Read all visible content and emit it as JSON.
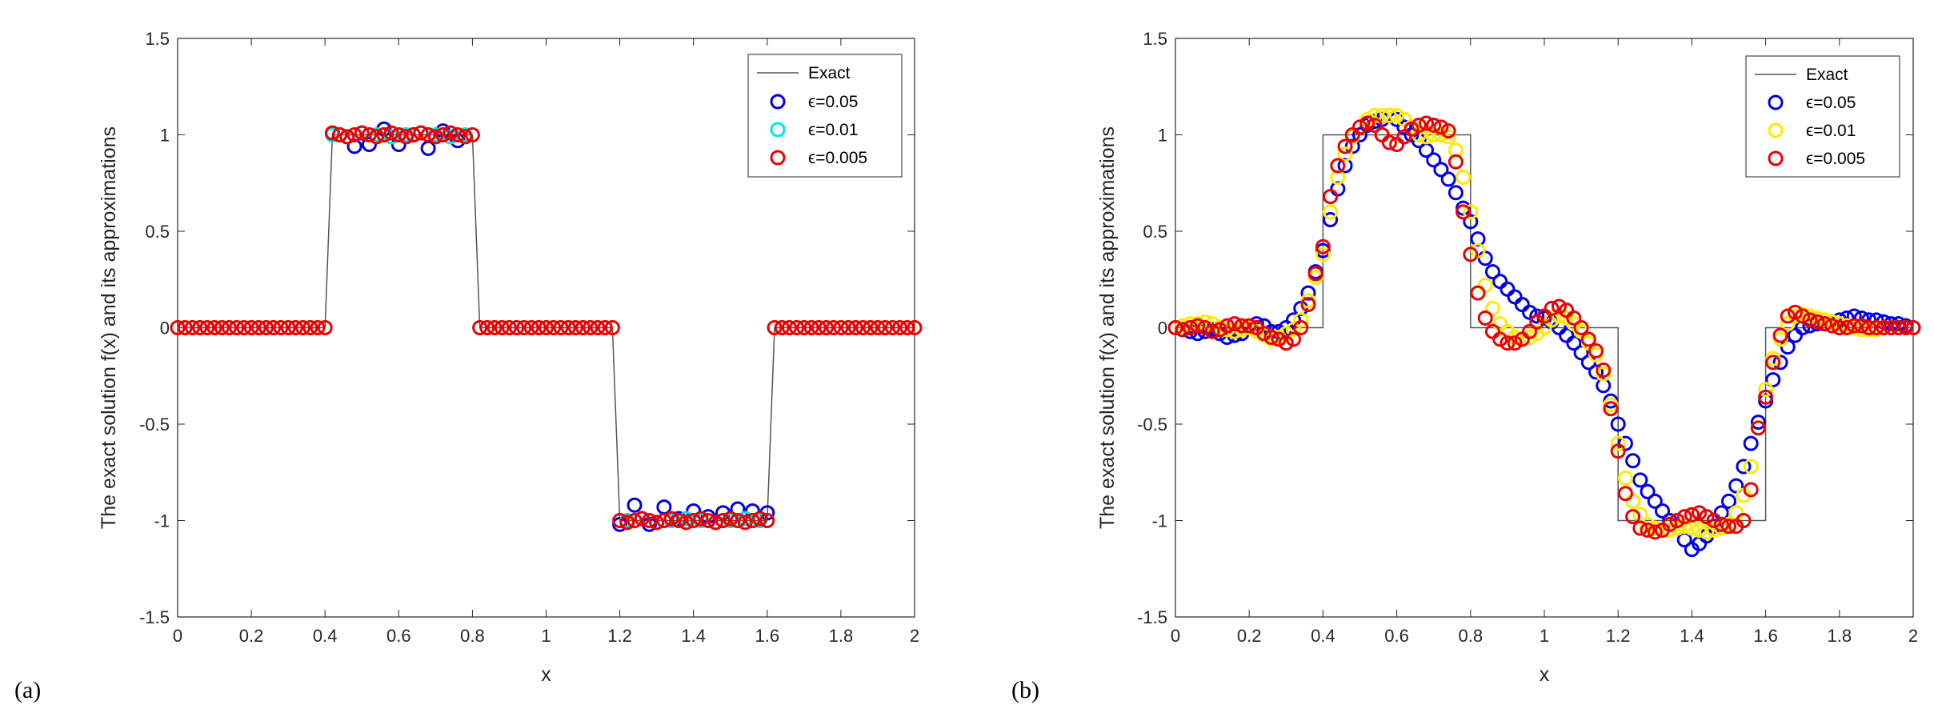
{
  "chart_data": [
    {
      "panel_label": "(a)",
      "type": "line",
      "xlabel": "x",
      "ylabel": "The exact solution f(x) and its approximations",
      "xlim": [
        0,
        2
      ],
      "ylim": [
        -1.5,
        1.5
      ],
      "xticks": [
        "0",
        "0.2",
        "0.4",
        "0.6",
        "0.8",
        "1",
        "1.2",
        "1.4",
        "1.6",
        "1.8",
        "2"
      ],
      "yticks": [
        "-1.5",
        "-1",
        "-0.5",
        "0",
        "0.5",
        "1",
        "1.5"
      ],
      "grid": false,
      "legend_position": "top-right",
      "exact": {
        "name": "Exact",
        "color": "#555555",
        "x": [
          0,
          0.4,
          0.42,
          0.8,
          0.82,
          1.18,
          1.2,
          1.6,
          1.62,
          2
        ],
        "y": [
          0,
          0,
          1,
          1,
          0,
          0,
          -1,
          -1,
          0,
          0
        ]
      },
      "series": [
        {
          "name": "ϵ=0.05",
          "color": "#0000ee",
          "x": [
            0.44,
            0.48,
            0.52,
            0.56,
            0.6,
            0.64,
            0.68,
            0.72,
            0.76,
            1.2,
            1.24,
            1.28,
            1.32,
            1.36,
            1.4,
            1.44,
            1.48,
            1.52,
            1.56,
            1.6
          ],
          "y": [
            1.0,
            0.94,
            0.95,
            1.03,
            0.95,
            1.0,
            0.93,
            1.02,
            0.97,
            -1.02,
            -0.92,
            -1.02,
            -0.93,
            -0.99,
            -0.95,
            -0.98,
            -0.96,
            -0.94,
            -0.95,
            -0.96
          ]
        },
        {
          "name": "ϵ=0.01",
          "color": "#00e5ee",
          "x": [
            0.42,
            0.46,
            0.5,
            0.54,
            0.58,
            0.62,
            0.66,
            0.7,
            0.74,
            0.78,
            1.22,
            1.26,
            1.3,
            1.34,
            1.38,
            1.42,
            1.46,
            1.5,
            1.54,
            1.58
          ],
          "y": [
            1.0,
            0.99,
            1.01,
            1.0,
            0.99,
            1.0,
            1.01,
            1.0,
            0.99,
            1.0,
            -1.0,
            -0.99,
            -1.01,
            -1.0,
            -0.99,
            -1.0,
            -1.01,
            -1.0,
            -0.99,
            -1.0
          ]
        },
        {
          "name": "ϵ=0.005",
          "color": "#ee0000",
          "x": [
            0,
            0.02,
            0.04,
            0.06,
            0.08,
            0.1,
            0.12,
            0.14,
            0.16,
            0.18,
            0.2,
            0.22,
            0.24,
            0.26,
            0.28,
            0.3,
            0.32,
            0.34,
            0.36,
            0.38,
            0.4,
            0.42,
            0.44,
            0.46,
            0.48,
            0.5,
            0.52,
            0.54,
            0.56,
            0.58,
            0.6,
            0.62,
            0.64,
            0.66,
            0.68,
            0.7,
            0.72,
            0.74,
            0.76,
            0.78,
            0.8,
            0.82,
            0.84,
            0.86,
            0.88,
            0.9,
            0.92,
            0.94,
            0.96,
            0.98,
            1.0,
            1.02,
            1.04,
            1.06,
            1.08,
            1.1,
            1.12,
            1.14,
            1.16,
            1.18,
            1.2,
            1.22,
            1.24,
            1.26,
            1.28,
            1.3,
            1.32,
            1.34,
            1.36,
            1.38,
            1.4,
            1.42,
            1.44,
            1.46,
            1.48,
            1.5,
            1.52,
            1.54,
            1.56,
            1.58,
            1.6,
            1.62,
            1.64,
            1.66,
            1.68,
            1.7,
            1.72,
            1.74,
            1.76,
            1.78,
            1.8,
            1.82,
            1.84,
            1.86,
            1.88,
            1.9,
            1.92,
            1.94,
            1.96,
            1.98,
            2.0
          ],
          "y": [
            0,
            0,
            0,
            0,
            0,
            0,
            0,
            0,
            0,
            0,
            0,
            0,
            0,
            0,
            0,
            0,
            0,
            0,
            0,
            0,
            0,
            1.01,
            1.0,
            0.99,
            1.0,
            1.01,
            1.0,
            0.99,
            1.0,
            1.01,
            1.0,
            0.99,
            1.0,
            1.01,
            1.0,
            0.99,
            1.0,
            1.01,
            1.0,
            0.99,
            1.0,
            0,
            0,
            0,
            0,
            0,
            0,
            0,
            0,
            0,
            0,
            0,
            0,
            0,
            0,
            0,
            0,
            0,
            0,
            0,
            -1.0,
            -1.01,
            -1.0,
            -0.99,
            -1.0,
            -1.01,
            -1.0,
            -0.99,
            -1.0,
            -1.01,
            -1.0,
            -0.99,
            -1.0,
            -1.01,
            -1.0,
            -0.99,
            -1.0,
            -1.01,
            -1.0,
            -0.99,
            -1.0,
            0,
            0,
            0,
            0,
            0,
            0,
            0,
            0,
            0,
            0,
            0,
            0,
            0,
            0,
            0,
            0,
            0,
            0,
            0,
            0
          ]
        }
      ]
    },
    {
      "panel_label": "(b)",
      "type": "line",
      "xlabel": "x",
      "ylabel": "The exact solution f(x) and its approximations",
      "xlim": [
        0,
        2
      ],
      "ylim": [
        -1.5,
        1.5
      ],
      "xticks": [
        "0",
        "0.2",
        "0.4",
        "0.6",
        "0.8",
        "1",
        "1.2",
        "1.4",
        "1.6",
        "1.8",
        "2"
      ],
      "yticks": [
        "-1.5",
        "-1",
        "-0.5",
        "0",
        "0.5",
        "1",
        "1.5"
      ],
      "grid": false,
      "legend_position": "top-right",
      "exact": {
        "name": "Exact",
        "color": "#555555",
        "x": [
          0,
          0.4,
          0.4,
          0.8,
          0.8,
          1.2,
          1.2,
          1.6,
          1.6,
          2
        ],
        "y": [
          0,
          0,
          1,
          1,
          0,
          0,
          -1,
          -1,
          0,
          0
        ]
      },
      "series": [
        {
          "name": "ϵ=0.05",
          "color": "#0000ee",
          "x": [
            0,
            0.02,
            0.04,
            0.06,
            0.08,
            0.1,
            0.12,
            0.14,
            0.16,
            0.18,
            0.2,
            0.22,
            0.24,
            0.26,
            0.28,
            0.3,
            0.32,
            0.34,
            0.36,
            0.38,
            0.4,
            0.42,
            0.44,
            0.46,
            0.48,
            0.5,
            0.52,
            0.54,
            0.56,
            0.58,
            0.6,
            0.62,
            0.64,
            0.66,
            0.68,
            0.7,
            0.72,
            0.74,
            0.76,
            0.78,
            0.8,
            0.82,
            0.84,
            0.86,
            0.88,
            0.9,
            0.92,
            0.94,
            0.96,
            0.98,
            1.0,
            1.02,
            1.04,
            1.06,
            1.08,
            1.1,
            1.12,
            1.14,
            1.16,
            1.18,
            1.2,
            1.22,
            1.24,
            1.26,
            1.28,
            1.3,
            1.32,
            1.34,
            1.36,
            1.38,
            1.4,
            1.42,
            1.44,
            1.46,
            1.48,
            1.5,
            1.52,
            1.54,
            1.56,
            1.58,
            1.6,
            1.62,
            1.64,
            1.66,
            1.68,
            1.7,
            1.72,
            1.74,
            1.76,
            1.78,
            1.8,
            1.82,
            1.84,
            1.86,
            1.88,
            1.9,
            1.92,
            1.94,
            1.96,
            1.98,
            2.0
          ],
          "y": [
            0.0,
            -0.01,
            -0.02,
            -0.03,
            -0.02,
            -0.01,
            -0.03,
            -0.05,
            -0.04,
            -0.03,
            0.0,
            0.02,
            0.01,
            -0.02,
            -0.02,
            0.0,
            0.04,
            0.1,
            0.18,
            0.29,
            0.4,
            0.56,
            0.72,
            0.84,
            0.94,
            1.0,
            1.05,
            1.07,
            1.08,
            1.1,
            1.08,
            1.04,
            1.0,
            0.97,
            0.92,
            0.87,
            0.82,
            0.77,
            0.7,
            0.62,
            0.55,
            0.46,
            0.36,
            0.29,
            0.24,
            0.2,
            0.16,
            0.12,
            0.08,
            0.06,
            0.05,
            0.03,
            0.0,
            -0.04,
            -0.08,
            -0.13,
            -0.18,
            -0.23,
            -0.3,
            -0.38,
            -0.5,
            -0.6,
            -0.69,
            -0.79,
            -0.85,
            -0.9,
            -0.95,
            -1.0,
            -1.04,
            -1.1,
            -1.15,
            -1.12,
            -1.08,
            -1.03,
            -0.96,
            -0.9,
            -0.82,
            -0.72,
            -0.6,
            -0.49,
            -0.38,
            -0.27,
            -0.18,
            -0.1,
            -0.04,
            0.0,
            0.01,
            0.02,
            0.02,
            0.03,
            0.04,
            0.05,
            0.06,
            0.05,
            0.04,
            0.04,
            0.03,
            0.02,
            0.02,
            0.01,
            0.0
          ]
        },
        {
          "name": "ϵ=0.01",
          "color": "#ffea00",
          "x": [
            0,
            0.02,
            0.04,
            0.06,
            0.08,
            0.1,
            0.12,
            0.14,
            0.16,
            0.18,
            0.2,
            0.22,
            0.24,
            0.26,
            0.28,
            0.3,
            0.32,
            0.34,
            0.36,
            0.38,
            0.4,
            0.42,
            0.44,
            0.46,
            0.48,
            0.5,
            0.52,
            0.54,
            0.56,
            0.58,
            0.6,
            0.62,
            0.64,
            0.66,
            0.68,
            0.7,
            0.72,
            0.74,
            0.76,
            0.78,
            0.8,
            0.82,
            0.84,
            0.86,
            0.88,
            0.9,
            0.92,
            0.94,
            0.96,
            0.98,
            1.0,
            1.02,
            1.04,
            1.06,
            1.08,
            1.1,
            1.12,
            1.14,
            1.16,
            1.18,
            1.2,
            1.22,
            1.24,
            1.26,
            1.28,
            1.3,
            1.32,
            1.34,
            1.36,
            1.38,
            1.4,
            1.42,
            1.44,
            1.46,
            1.48,
            1.5,
            1.52,
            1.54,
            1.56,
            1.58,
            1.6,
            1.62,
            1.64,
            1.66,
            1.68,
            1.7,
            1.72,
            1.74,
            1.76,
            1.78,
            1.8,
            1.82,
            1.84,
            1.86,
            1.88,
            1.9,
            1.92,
            1.94,
            1.96,
            1.98,
            2.0
          ],
          "y": [
            0.0,
            0.01,
            0.02,
            0.02,
            0.03,
            0.02,
            0.0,
            -0.01,
            -0.02,
            -0.01,
            0.0,
            -0.02,
            -0.04,
            -0.06,
            -0.05,
            -0.03,
            -0.01,
            0.04,
            0.14,
            0.26,
            0.38,
            0.6,
            0.78,
            0.9,
            0.99,
            1.04,
            1.08,
            1.1,
            1.1,
            1.1,
            1.1,
            1.08,
            1.04,
            1.0,
            0.99,
            1.0,
            1.0,
            0.99,
            0.92,
            0.78,
            0.6,
            0.4,
            0.22,
            0.1,
            0.02,
            -0.02,
            -0.05,
            -0.06,
            -0.05,
            -0.03,
            0.0,
            0.04,
            0.06,
            0.05,
            0.02,
            -0.02,
            -0.08,
            -0.14,
            -0.24,
            -0.4,
            -0.6,
            -0.78,
            -0.9,
            -0.97,
            -1.02,
            -1.04,
            -1.05,
            -1.05,
            -1.04,
            -1.03,
            -1.04,
            -1.05,
            -1.06,
            -1.05,
            -1.04,
            -1.02,
            -0.96,
            -0.87,
            -0.72,
            -0.52,
            -0.32,
            -0.16,
            -0.06,
            0.02,
            0.06,
            0.07,
            0.06,
            0.05,
            0.04,
            0.03,
            0.02,
            0.01,
            0.0,
            -0.01,
            -0.01,
            -0.01,
            0.0,
            0.0,
            0.0,
            0.0,
            0.0
          ]
        },
        {
          "name": "ϵ=0.005",
          "color": "#ee0000",
          "x": [
            0,
            0.02,
            0.04,
            0.06,
            0.08,
            0.1,
            0.12,
            0.14,
            0.16,
            0.18,
            0.2,
            0.22,
            0.24,
            0.26,
            0.28,
            0.3,
            0.32,
            0.34,
            0.36,
            0.38,
            0.4,
            0.42,
            0.44,
            0.46,
            0.48,
            0.5,
            0.52,
            0.54,
            0.56,
            0.58,
            0.6,
            0.62,
            0.64,
            0.66,
            0.68,
            0.7,
            0.72,
            0.74,
            0.76,
            0.78,
            0.8,
            0.82,
            0.84,
            0.86,
            0.88,
            0.9,
            0.92,
            0.94,
            0.96,
            0.98,
            1.0,
            1.02,
            1.04,
            1.06,
            1.08,
            1.1,
            1.12,
            1.14,
            1.16,
            1.18,
            1.2,
            1.22,
            1.24,
            1.26,
            1.28,
            1.3,
            1.32,
            1.34,
            1.36,
            1.38,
            1.4,
            1.42,
            1.44,
            1.46,
            1.48,
            1.5,
            1.52,
            1.54,
            1.56,
            1.58,
            1.6,
            1.62,
            1.64,
            1.66,
            1.68,
            1.7,
            1.72,
            1.74,
            1.76,
            1.78,
            1.8,
            1.82,
            1.84,
            1.86,
            1.88,
            1.9,
            1.92,
            1.94,
            1.96,
            1.98,
            2.0
          ],
          "y": [
            0.0,
            -0.01,
            0.0,
            0.01,
            0.0,
            -0.02,
            -0.01,
            0.01,
            0.02,
            0.01,
            0.01,
            0.0,
            -0.03,
            -0.05,
            -0.06,
            -0.08,
            -0.06,
            0.0,
            0.12,
            0.28,
            0.42,
            0.68,
            0.84,
            0.94,
            1.0,
            1.04,
            1.06,
            1.05,
            1.0,
            0.96,
            0.95,
            0.99,
            1.03,
            1.05,
            1.06,
            1.05,
            1.04,
            1.02,
            0.86,
            0.6,
            0.38,
            0.18,
            0.05,
            -0.02,
            -0.06,
            -0.08,
            -0.08,
            -0.06,
            -0.02,
            0.03,
            0.06,
            0.1,
            0.11,
            0.09,
            0.05,
            0.0,
            -0.06,
            -0.12,
            -0.22,
            -0.42,
            -0.64,
            -0.86,
            -0.98,
            -1.04,
            -1.05,
            -1.06,
            -1.05,
            -1.02,
            -1.0,
            -0.98,
            -0.97,
            -0.96,
            -0.98,
            -1.0,
            -1.02,
            -1.03,
            -1.03,
            -1.0,
            -0.84,
            -0.52,
            -0.36,
            -0.18,
            -0.04,
            0.06,
            0.08,
            0.06,
            0.04,
            0.03,
            0.02,
            0.01,
            0.0,
            0.0,
            0.01,
            0.01,
            0.0,
            0.0,
            0.0,
            0.0,
            0.0,
            0.0,
            0.0
          ]
        }
      ]
    }
  ]
}
